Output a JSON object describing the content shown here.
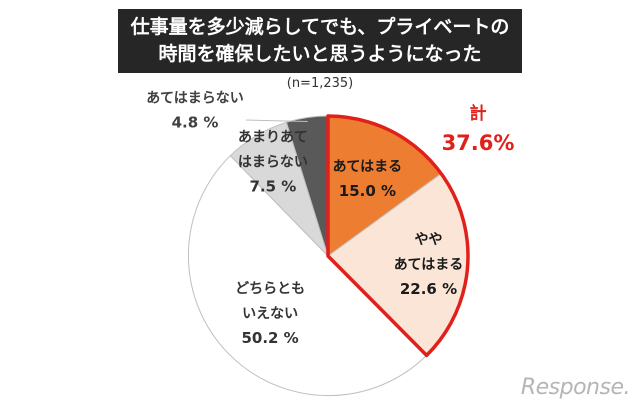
{
  "title_lines": [
    "仕事量を多少減らしてでも、プライベートの",
    "時間を確保したいと思うようになった"
  ],
  "sample_note": "(n=1,235)",
  "total": {
    "label": "計",
    "value": "37.6%"
  },
  "watermark": "Response.",
  "chart_data": {
    "type": "pie",
    "title": "仕事量を多少減らしてでも、プライベートの時間を確保したいと思うようになった",
    "note": "(n=1,235)",
    "unit": "%",
    "slices": [
      {
        "label_lines": [
          "あてはまる"
        ],
        "value": 15.0,
        "value_text": "15.0 %",
        "color": "#ed7d31"
      },
      {
        "label_lines": [
          "やや",
          "あてはまる"
        ],
        "value": 22.6,
        "value_text": "22.6 %",
        "color": "#fbe5d6"
      },
      {
        "label_lines": [
          "どちらとも",
          "いえない"
        ],
        "value": 50.2,
        "value_text": "50.2 %",
        "color": "#ffffff"
      },
      {
        "label_lines": [
          "あまりあて",
          "はまらない"
        ],
        "value": 7.5,
        "value_text": "7.5 %",
        "color": "#d9d9d9"
      },
      {
        "label_lines": [
          "あてはまらない"
        ],
        "value": 4.8,
        "value_text": "4.8 %",
        "color": "#595959"
      }
    ],
    "highlight_total": {
      "label": "計",
      "value": 37.6,
      "value_text": "37.6%",
      "color": "#e0201b"
    }
  }
}
